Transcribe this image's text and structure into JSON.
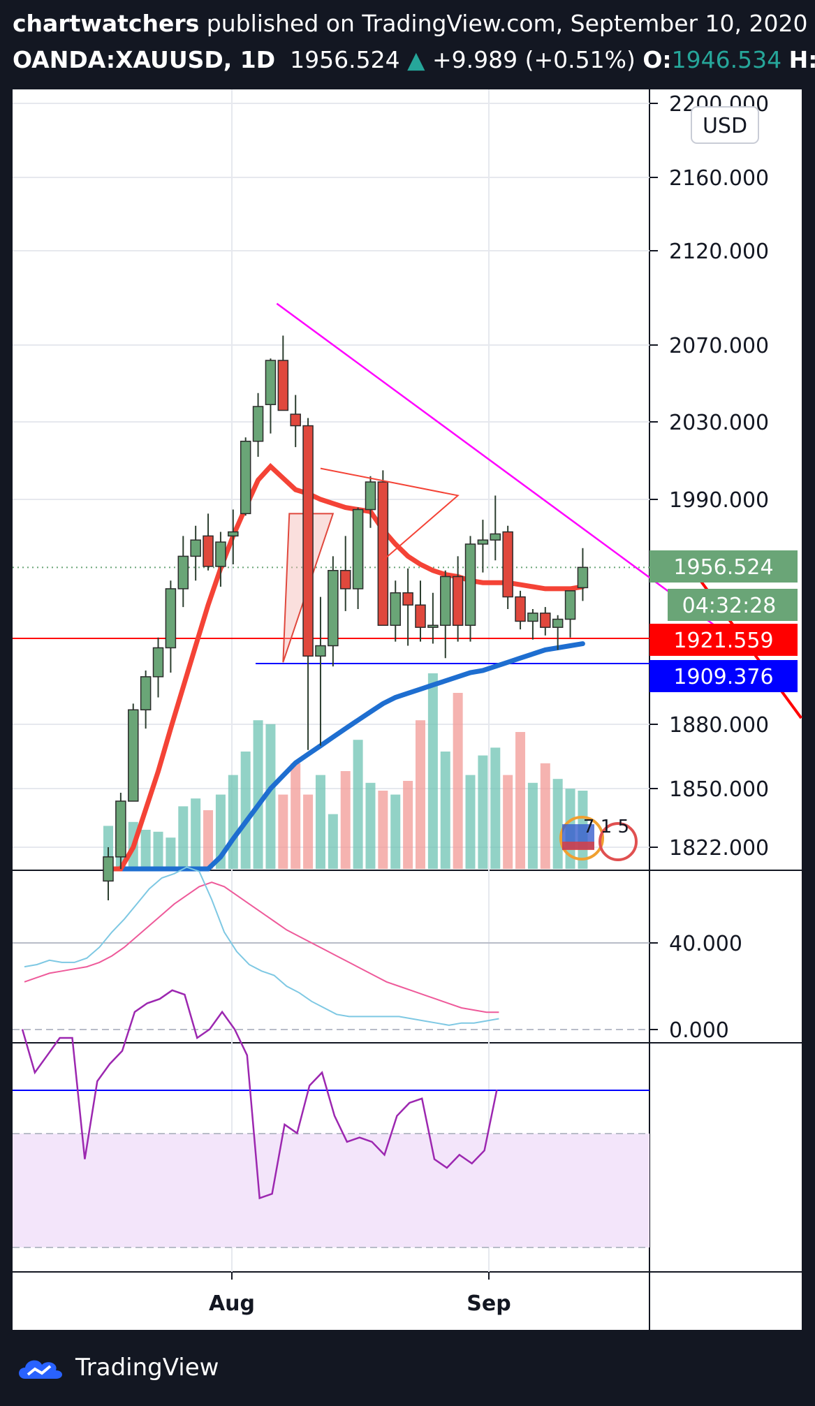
{
  "header": {
    "author": "chartwatchers",
    "published_text": "published on TradingView.com, September 10, 2020",
    "symbol": "OANDA:XAUUSD, 1D",
    "price": "1956.524",
    "change": "+9.989 (+0.51%)",
    "open_label": "O:",
    "open_value": "1946.534",
    "high_label": "H:"
  },
  "currency_button": "USD",
  "footer_brand": "TradingView",
  "colors": {
    "background": "#131722",
    "up_candle": "#6aa577",
    "down_candle": "#e0483d",
    "magenta_trendline": "#ff00ff",
    "red_level": "#ff0000",
    "blue_level": "#0000ff",
    "ma_short": "#f44336",
    "ma_long": "#1e6ed0",
    "stoch_k": "#7ec8e3",
    "stoch_d": "#ee5a9a",
    "rsi": "#9c27b0"
  },
  "tags": {
    "last_price": "1956.524",
    "countdown": "04:32:28",
    "red_level": "1921.559",
    "blue_level": "1909.376"
  },
  "event_badge_text": "7 1 5",
  "chart_data": [
    {
      "type": "candlestick",
      "title": "OANDA:XAUUSD, 1D",
      "yaxis_ticks": [
        "2200.000",
        "2160.000",
        "2120.000",
        "2070.000",
        "2030.000",
        "1990.000",
        "1880.000",
        "1850.000",
        "1822.000"
      ],
      "xaxis_ticks": [
        "Aug",
        "Sep"
      ],
      "ylim": [
        1815,
        2205
      ],
      "grid": true,
      "horizontal_levels": [
        1921.559,
        1909.376
      ],
      "last_price": 1956.524,
      "candles": [
        {
          "o": 1808,
          "h": 1822,
          "l": 1800,
          "c": 1818
        },
        {
          "o": 1818,
          "h": 1848,
          "l": 1813,
          "c": 1844
        },
        {
          "o": 1844,
          "h": 1890,
          "l": 1844,
          "c": 1887
        },
        {
          "o": 1887,
          "h": 1906,
          "l": 1878,
          "c": 1903
        },
        {
          "o": 1903,
          "h": 1922,
          "l": 1893,
          "c": 1917
        },
        {
          "o": 1917,
          "h": 1950,
          "l": 1905,
          "c": 1946
        },
        {
          "o": 1946,
          "h": 1972,
          "l": 1937,
          "c": 1962
        },
        {
          "o": 1962,
          "h": 1977,
          "l": 1950,
          "c": 1970
        },
        {
          "o": 1972,
          "h": 1983,
          "l": 1955,
          "c": 1957
        },
        {
          "o": 1957,
          "h": 1974,
          "l": 1947,
          "c": 1969
        },
        {
          "o": 1972,
          "h": 1985,
          "l": 1958,
          "c": 1974
        },
        {
          "o": 1983,
          "h": 2022,
          "l": 1982,
          "c": 2020
        },
        {
          "o": 2020,
          "h": 2045,
          "l": 2012,
          "c": 2038
        },
        {
          "o": 2039,
          "h": 2063,
          "l": 2024,
          "c": 2062
        },
        {
          "o": 2062,
          "h": 2075,
          "l": 2036,
          "c": 2036
        },
        {
          "o": 2034,
          "h": 2044,
          "l": 2017,
          "c": 2028
        },
        {
          "o": 2028,
          "h": 2032,
          "l": 1868,
          "c": 1913
        },
        {
          "o": 1913,
          "h": 1942,
          "l": 1870,
          "c": 1918
        },
        {
          "o": 1918,
          "h": 1962,
          "l": 1908,
          "c": 1955
        },
        {
          "o": 1955,
          "h": 1972,
          "l": 1935,
          "c": 1946
        },
        {
          "o": 1946,
          "h": 1986,
          "l": 1936,
          "c": 1985
        },
        {
          "o": 1985,
          "h": 2002,
          "l": 1976,
          "c": 1999
        },
        {
          "o": 1999,
          "h": 2005,
          "l": 1928,
          "c": 1928
        },
        {
          "o": 1928,
          "h": 1950,
          "l": 1920,
          "c": 1944
        },
        {
          "o": 1944,
          "h": 1956,
          "l": 1918,
          "c": 1938
        },
        {
          "o": 1938,
          "h": 1950,
          "l": 1920,
          "c": 1927
        },
        {
          "o": 1927,
          "h": 1944,
          "l": 1919,
          "c": 1928
        },
        {
          "o": 1928,
          "h": 1955,
          "l": 1912,
          "c": 1952
        },
        {
          "o": 1952,
          "h": 1962,
          "l": 1920,
          "c": 1928
        },
        {
          "o": 1928,
          "h": 1972,
          "l": 1920,
          "c": 1968
        },
        {
          "o": 1968,
          "h": 1980,
          "l": 1954,
          "c": 1970
        },
        {
          "o": 1970,
          "h": 1992,
          "l": 1960,
          "c": 1973
        },
        {
          "o": 1974,
          "h": 1977,
          "l": 1936,
          "c": 1942
        },
        {
          "o": 1942,
          "h": 1945,
          "l": 1926,
          "c": 1930
        },
        {
          "o": 1930,
          "h": 1936,
          "l": 1921,
          "c": 1934
        },
        {
          "o": 1934,
          "h": 1937,
          "l": 1923,
          "c": 1927
        },
        {
          "o": 1927,
          "h": 1933,
          "l": 1916,
          "c": 1931
        },
        {
          "o": 1931,
          "h": 1945,
          "l": 1922,
          "c": 1945
        },
        {
          "o": 1946.534,
          "h": 1966,
          "l": 1940,
          "c": 1956.524
        }
      ],
      "volume_relative": [
        0.22,
        0.18,
        0.24,
        0.2,
        0.19,
        0.16,
        0.32,
        0.36,
        0.3,
        0.38,
        0.48,
        0.6,
        0.76,
        0.74,
        0.38,
        0.54,
        0.38,
        0.48,
        0.28,
        0.5,
        0.66,
        0.44,
        0.4,
        0.38,
        0.45,
        0.76,
        1.0,
        0.6,
        0.9,
        0.48,
        0.58,
        0.62,
        0.48,
        0.7,
        0.44,
        0.54,
        0.46,
        0.41,
        0.4
      ],
      "ma_short": [
        1798,
        1806,
        1822,
        1840,
        1858,
        1878,
        1898,
        1918,
        1938,
        1956,
        1972,
        1986,
        2000,
        2007,
        2001,
        1995,
        1993,
        1990,
        1988,
        1986,
        1985,
        1984,
        1975,
        1968,
        1962,
        1958,
        1955,
        1953,
        1952,
        1950,
        1949,
        1949,
        1949,
        1948,
        1947,
        1946,
        1946,
        1946,
        1947
      ],
      "ma_long": [
        1768,
        1772,
        1776,
        1780,
        1785,
        1790,
        1796,
        1803,
        1810,
        1818,
        1826,
        1834,
        1842,
        1850,
        1856,
        1862,
        1866,
        1870,
        1874,
        1878,
        1882,
        1886,
        1890,
        1893,
        1895,
        1897,
        1899,
        1901,
        1903,
        1905,
        1906,
        1908,
        1910,
        1912,
        1914,
        1916,
        1917,
        1918,
        1919
      ],
      "magenta_trendline": [
        [
          13.5,
          2092
        ],
        [
          49,
          1926
        ]
      ],
      "projection": [
        [
          46,
          1962
        ],
        [
          55.5,
          1883
        ]
      ],
      "triangle": [
        [
          14.5,
          1983
        ],
        [
          18,
          1983
        ],
        [
          14,
          1910
        ]
      ],
      "red_line": [
        [
          17,
          2006
        ],
        [
          28,
          1992
        ],
        [
          22,
          1960
        ]
      ]
    },
    {
      "type": "line",
      "title": "Stochastic",
      "yaxis_ticks": [
        "40.000",
        "0.000"
      ],
      "ylim": [
        0,
        85
      ],
      "k": [
        29,
        30,
        32,
        31,
        31,
        33,
        38,
        45,
        51,
        58,
        65,
        70,
        72,
        75,
        73,
        60,
        45,
        36,
        30,
        27,
        25,
        20,
        17,
        13,
        10,
        7,
        6,
        6,
        6,
        6,
        6,
        5,
        4,
        3,
        2,
        3,
        3,
        4,
        5
      ],
      "d": [
        22,
        24,
        26,
        27,
        28,
        29,
        31,
        34,
        38,
        43,
        48,
        53,
        58,
        62,
        66,
        68,
        66,
        62,
        58,
        54,
        50,
        46,
        43,
        40,
        37,
        34,
        31,
        28,
        25,
        22,
        20,
        18,
        16,
        14,
        12,
        10,
        9,
        8,
        8
      ]
    },
    {
      "type": "line",
      "title": "RSI",
      "rsi": [
        72,
        62,
        66,
        70,
        70,
        42,
        60,
        64,
        67,
        76,
        78,
        79,
        81,
        80,
        70,
        72,
        76,
        72,
        66,
        33,
        34,
        50,
        48,
        59,
        62,
        52,
        46,
        47,
        46,
        43,
        52,
        55,
        56,
        42,
        40,
        43,
        41,
        44,
        58
      ]
    }
  ]
}
